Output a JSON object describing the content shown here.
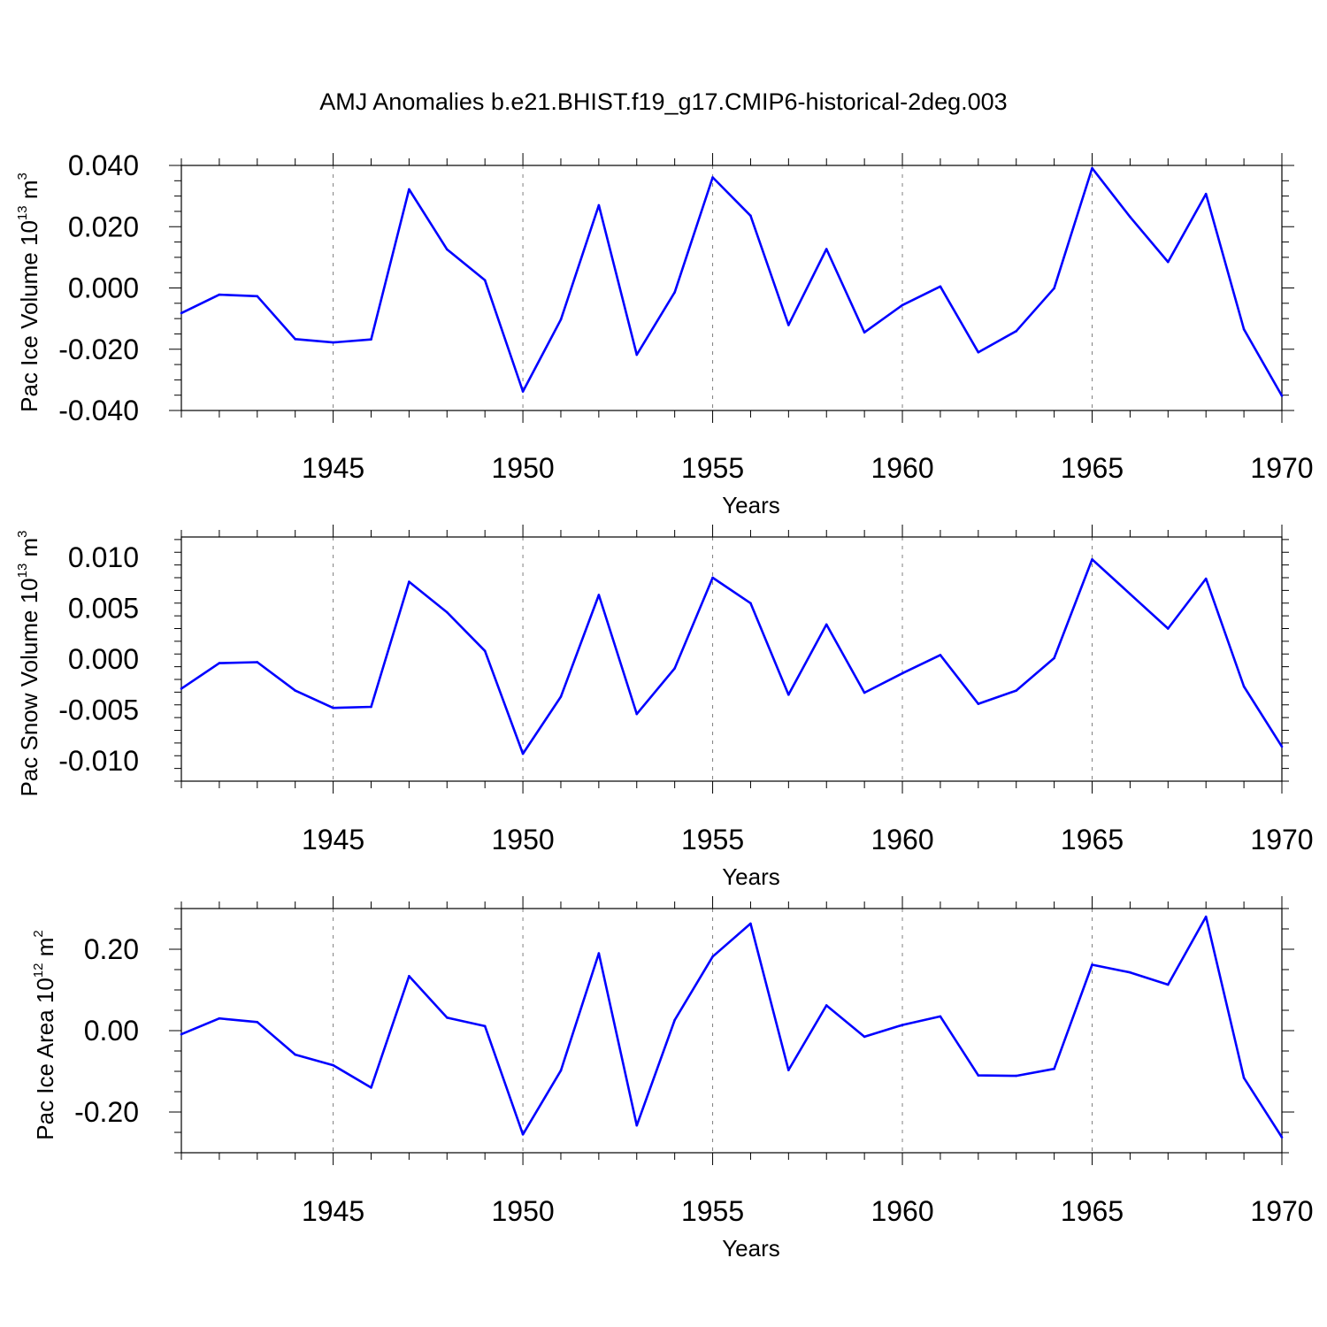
{
  "title": "AMJ Anomalies b.e21.BHIST.f19_g17.CMIP6-historical-2deg.003",
  "colors": {
    "line": "#0000ff",
    "axis": "#000000",
    "grid": "#808080"
  },
  "chart_data": [
    {
      "type": "line",
      "ylabel": {
        "text": "Pac Ice Volume 10",
        "exp": "13",
        "unit": " m",
        "unit_exp": "3"
      },
      "xlabel": "Years",
      "xlim": [
        1941,
        1970
      ],
      "ylim": [
        -0.04,
        0.04
      ],
      "xticks": [
        1945,
        1950,
        1955,
        1960,
        1965,
        1970
      ],
      "yticks": [
        0.04,
        0.02,
        0.0,
        -0.02,
        -0.04
      ],
      "ytick_labels": [
        "0.040",
        "0.020",
        "0.000",
        "-0.020",
        "-0.040"
      ],
      "grid": "vertical dashed at major x ticks",
      "x": [
        1941,
        1942,
        1943,
        1944,
        1945,
        1946,
        1947,
        1948,
        1949,
        1950,
        1951,
        1952,
        1953,
        1954,
        1955,
        1956,
        1957,
        1958,
        1959,
        1960,
        1961,
        1962,
        1963,
        1964,
        1965,
        1966,
        1967,
        1968,
        1969,
        1970
      ],
      "values": [
        -0.0082,
        -0.0022,
        -0.0027,
        -0.0167,
        -0.0178,
        -0.0168,
        0.0322,
        0.0126,
        0.0025,
        -0.0338,
        -0.0103,
        0.027,
        -0.0218,
        -0.0014,
        0.0361,
        0.0236,
        -0.0121,
        0.0127,
        -0.0145,
        -0.0056,
        0.0005,
        -0.021,
        -0.0141,
        -0.0001,
        0.0391,
        0.0232,
        0.0085,
        0.0307,
        -0.0135,
        -0.0352
      ]
    },
    {
      "type": "line",
      "ylabel": {
        "text": "Pac Snow Volume 10",
        "exp": "13",
        "unit": " m",
        "unit_exp": "3"
      },
      "xlabel": "Years",
      "xlim": [
        1941,
        1970
      ],
      "ylim": [
        -0.012,
        0.012
      ],
      "xticks": [
        1945,
        1950,
        1955,
        1960,
        1965,
        1970
      ],
      "yticks": [
        0.01,
        0.005,
        0.0,
        -0.005,
        -0.01
      ],
      "ytick_labels": [
        "0.010",
        "0.005",
        "0.000",
        "-0.005",
        "-0.010"
      ],
      "grid": "vertical dashed at major x ticks",
      "x": [
        1941,
        1942,
        1943,
        1944,
        1945,
        1946,
        1947,
        1948,
        1949,
        1950,
        1951,
        1952,
        1953,
        1954,
        1955,
        1956,
        1957,
        1958,
        1959,
        1960,
        1961,
        1962,
        1963,
        1964,
        1965,
        1966,
        1967,
        1968,
        1969,
        1970
      ],
      "values": [
        -0.0029,
        -0.0004,
        -0.0003,
        -0.0031,
        -0.0048,
        -0.0047,
        0.0076,
        0.0046,
        0.0008,
        -0.0093,
        -0.0037,
        0.0063,
        -0.0054,
        -0.0009,
        0.008,
        0.0055,
        -0.0035,
        0.0034,
        -0.0033,
        -0.0014,
        0.0004,
        -0.0044,
        -0.0031,
        0.0001,
        0.0098,
        0.0064,
        0.003,
        0.0079,
        -0.0027,
        -0.0086
      ]
    },
    {
      "type": "line",
      "ylabel": {
        "text": "Pac Ice Area 10",
        "exp": "12",
        "unit": " m",
        "unit_exp": "2"
      },
      "xlabel": "Years",
      "xlim": [
        1941,
        1970
      ],
      "ylim": [
        -0.3,
        0.3
      ],
      "xticks": [
        1945,
        1950,
        1955,
        1960,
        1965,
        1970
      ],
      "yticks": [
        0.2,
        0.0,
        -0.2
      ],
      "ytick_labels": [
        "0.20",
        "0.00",
        "-0.20"
      ],
      "grid": "vertical dashed at major x ticks",
      "x": [
        1941,
        1942,
        1943,
        1944,
        1945,
        1946,
        1947,
        1948,
        1949,
        1950,
        1951,
        1952,
        1953,
        1954,
        1955,
        1956,
        1957,
        1958,
        1959,
        1960,
        1961,
        1962,
        1963,
        1964,
        1965,
        1966,
        1967,
        1968,
        1969,
        1970
      ],
      "values": [
        -0.009,
        0.03,
        0.021,
        -0.059,
        -0.085,
        -0.14,
        0.134,
        0.032,
        0.011,
        -0.255,
        -0.098,
        0.19,
        -0.233,
        0.026,
        0.182,
        0.263,
        -0.097,
        0.062,
        -0.015,
        0.014,
        0.035,
        -0.11,
        -0.111,
        -0.094,
        0.162,
        0.143,
        0.113,
        0.28,
        -0.116,
        -0.262
      ]
    }
  ]
}
